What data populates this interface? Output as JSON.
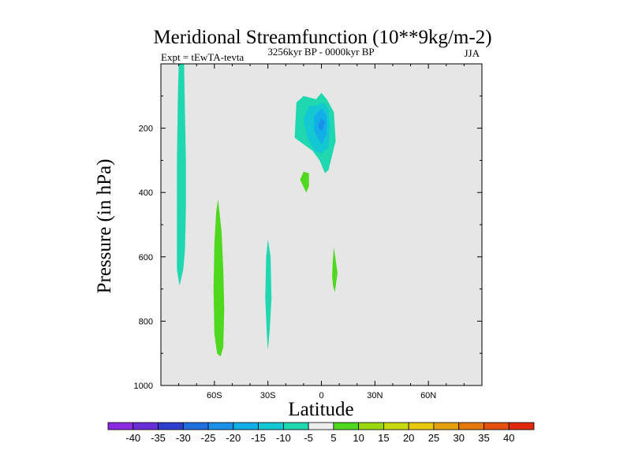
{
  "chart_data": {
    "type": "contour",
    "title": "Meridional Streamfunction (10**9kg/m-2)",
    "left_annotation": "Expt = tEwTA-tevta",
    "center_annotation": "3256kyr BP - 0000kyr BP",
    "right_annotation": "JJA",
    "xlabel": "Latitude",
    "ylabel": "Pressure (in hPa)",
    "xlim": [
      -90,
      90
    ],
    "ylim": [
      1000,
      0
    ],
    "x_ticks": [
      {
        "value": -60,
        "label": "60S"
      },
      {
        "value": -30,
        "label": "30S"
      },
      {
        "value": 0,
        "label": "0"
      },
      {
        "value": 30,
        "label": "30N"
      },
      {
        "value": 60,
        "label": "60N"
      }
    ],
    "y_ticks": [
      {
        "value": 200,
        "label": "200"
      },
      {
        "value": 400,
        "label": "400"
      },
      {
        "value": 600,
        "label": "600"
      },
      {
        "value": 800,
        "label": "800"
      },
      {
        "value": 1000,
        "label": "1000"
      }
    ],
    "background_color": "#e6e6e6",
    "colorbar": {
      "labels": [
        "-40",
        "-35",
        "-30",
        "-25",
        "-20",
        "-15",
        "-10",
        "-5",
        "5",
        "10",
        "15",
        "20",
        "25",
        "30",
        "35",
        "40"
      ],
      "colors": [
        "#8a2be2",
        "#6a2ed8",
        "#2e3fd0",
        "#1f6fe0",
        "#1a90e8",
        "#12aee8",
        "#13c8d2",
        "#20d8b0",
        "#eeeeee",
        "#4fd81e",
        "#9ad80e",
        "#c8d80e",
        "#e6c80e",
        "#e6a00e",
        "#e6780e",
        "#e6500e",
        "#e02a0e"
      ]
    },
    "regions": [
      {
        "name": "cell-negative-60S-80S",
        "color": "#20d8b0",
        "points": [
          [
            -80,
            0
          ],
          [
            -77,
            0
          ],
          [
            -76.5,
            150
          ],
          [
            -76,
            300
          ],
          [
            -76,
            450
          ],
          [
            -76.5,
            580
          ],
          [
            -77.5,
            640
          ],
          [
            -79.5,
            690
          ],
          [
            -81,
            640
          ],
          [
            -81,
            300
          ],
          [
            -80.5,
            100
          ]
        ]
      },
      {
        "name": "cell-positive-55S",
        "color": "#4fd81e",
        "points": [
          [
            -58,
            420
          ],
          [
            -56,
            520
          ],
          [
            -55,
            640
          ],
          [
            -54.5,
            760
          ],
          [
            -55,
            880
          ],
          [
            -56.5,
            910
          ],
          [
            -58.5,
            900
          ],
          [
            -60,
            840
          ],
          [
            -60.5,
            700
          ],
          [
            -60,
            560
          ],
          [
            -59,
            460
          ]
        ]
      },
      {
        "name": "cell-negative-30S",
        "color": "#20d8b0",
        "points": [
          [
            -29,
            830
          ],
          [
            -28,
            730
          ],
          [
            -28.5,
            600
          ],
          [
            -30,
            545
          ],
          [
            -31,
            600
          ],
          [
            -31.5,
            730
          ],
          [
            -30.5,
            850
          ],
          [
            -30,
            890
          ]
        ]
      },
      {
        "name": "cell-negative-tropical-outer",
        "color": "#20d8b0",
        "points": [
          [
            -15,
            230
          ],
          [
            -14,
            120
          ],
          [
            -10,
            100
          ],
          [
            -3,
            110
          ],
          [
            0,
            90
          ],
          [
            3,
            110
          ],
          [
            7,
            150
          ],
          [
            8,
            240
          ],
          [
            4,
            330
          ],
          [
            2,
            340
          ],
          [
            -1,
            300
          ],
          [
            -5,
            270
          ],
          [
            -10,
            250
          ]
        ]
      },
      {
        "name": "cell-negative-tropical-mid",
        "color": "#13c8d2",
        "points": [
          [
            -8,
            230
          ],
          [
            -10,
            170
          ],
          [
            -7,
            130
          ],
          [
            -3,
            130
          ],
          [
            1,
            120
          ],
          [
            4,
            140
          ],
          [
            5,
            200
          ],
          [
            4,
            260
          ],
          [
            0,
            280
          ],
          [
            -4,
            270
          ]
        ]
      },
      {
        "name": "cell-negative-tropical-inner",
        "color": "#12aee8",
        "points": [
          [
            -4,
            210
          ],
          [
            -4,
            160
          ],
          [
            0,
            140
          ],
          [
            3,
            160
          ],
          [
            3,
            220
          ],
          [
            0,
            250
          ]
        ]
      },
      {
        "name": "cell-negative-tropical-core",
        "color": "#1a90e8",
        "points": [
          [
            -2,
            190
          ],
          [
            0,
            170
          ],
          [
            2,
            180
          ],
          [
            1,
            205
          ],
          [
            -1,
            205
          ]
        ]
      },
      {
        "name": "cell-positive-12S",
        "color": "#4fd81e",
        "points": [
          [
            -12,
            360
          ],
          [
            -10,
            335
          ],
          [
            -7,
            340
          ],
          [
            -7,
            380
          ],
          [
            -8.5,
            400
          ]
        ]
      },
      {
        "name": "cell-positive-7N",
        "color": "#4fd81e",
        "points": [
          [
            6.5,
            690
          ],
          [
            6,
            660
          ],
          [
            6.3,
            620
          ],
          [
            7,
            570
          ],
          [
            8,
            610
          ],
          [
            9,
            650
          ],
          [
            7.5,
            710
          ]
        ]
      }
    ]
  }
}
